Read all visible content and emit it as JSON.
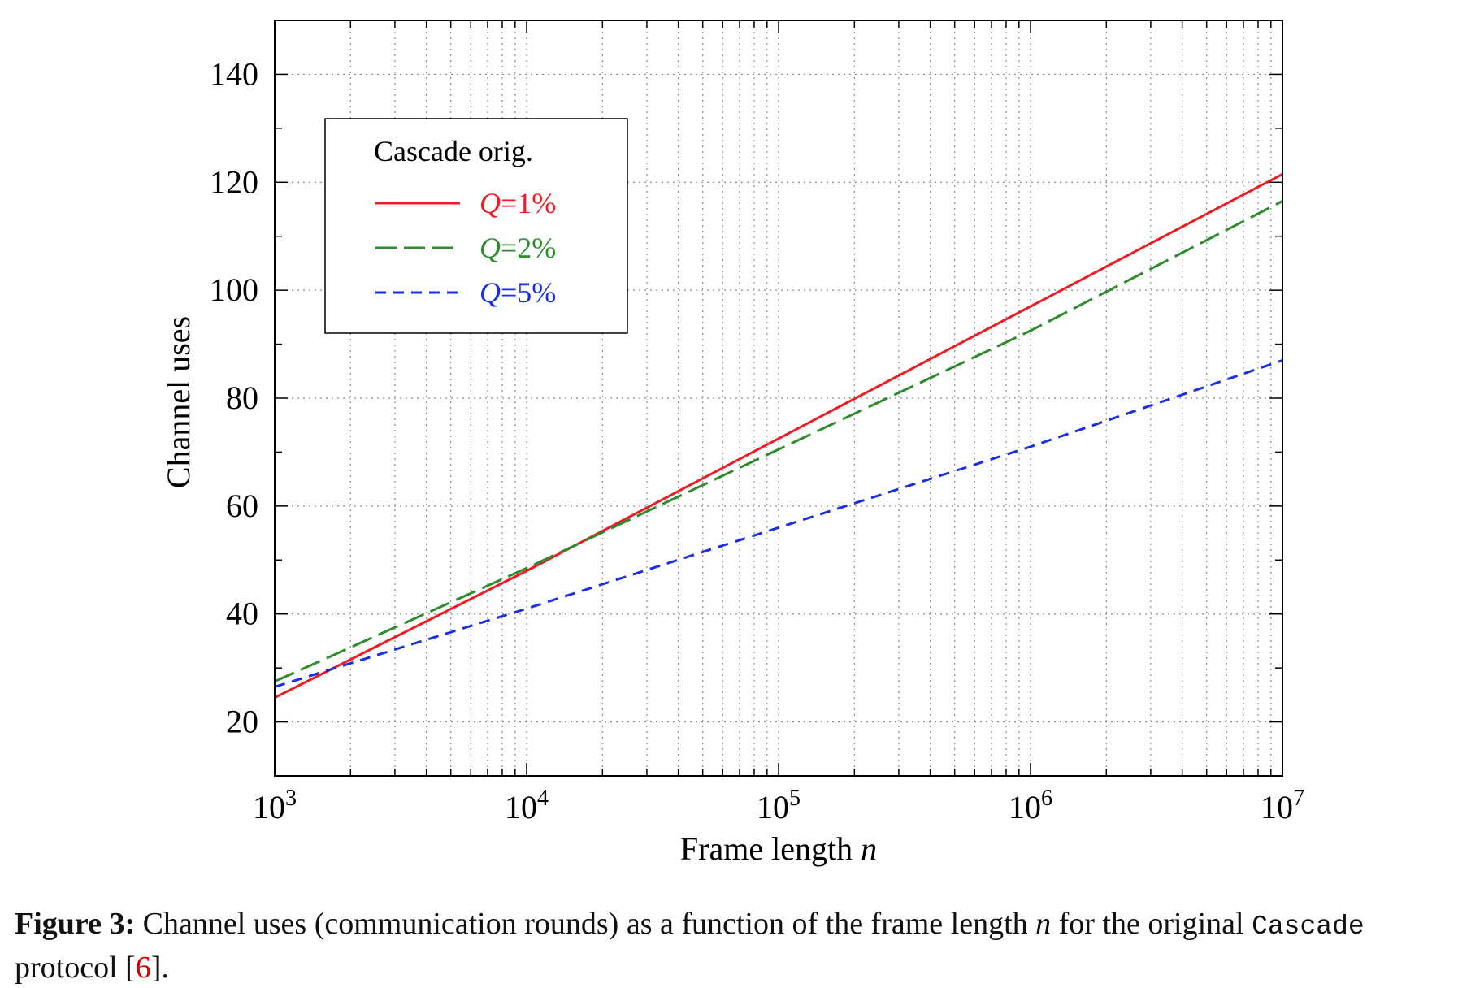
{
  "chart_data": {
    "type": "line",
    "xscale": "log",
    "xlim": [
      1000,
      10000000
    ],
    "ylim": [
      10,
      150
    ],
    "xlabel_text": "Frame length ",
    "xlabel_var": "n",
    "ylabel": "Channel uses",
    "xticks": [
      {
        "base": "10",
        "exp": "3"
      },
      {
        "base": "10",
        "exp": "4"
      },
      {
        "base": "10",
        "exp": "5"
      },
      {
        "base": "10",
        "exp": "6"
      },
      {
        "base": "10",
        "exp": "7"
      }
    ],
    "yticks": [
      "20",
      "40",
      "60",
      "80",
      "100",
      "120",
      "140"
    ],
    "grid": true,
    "legend_position": "top-left",
    "legend_title": "Cascade orig.",
    "series": [
      {
        "name": "Q=1%",
        "var": "Q",
        "suffix": "=1%",
        "color": "#ee1c25",
        "dash": "solid",
        "x": [
          1000,
          10000,
          100000,
          1000000,
          10000000
        ],
        "y": [
          24.5,
          48.0,
          72.5,
          97.0,
          121.5
        ]
      },
      {
        "name": "Q=2%",
        "var": "Q",
        "suffix": "=2%",
        "color": "#2e8b2e",
        "dash": "long",
        "x": [
          1000,
          10000,
          100000,
          1000000,
          10000000
        ],
        "y": [
          27.5,
          48.5,
          70.5,
          92.5,
          116.5
        ]
      },
      {
        "name": "Q=5%",
        "var": "Q",
        "suffix": "=5%",
        "color": "#1a2ee6",
        "dash": "short",
        "x": [
          1000,
          10000,
          100000,
          1000000,
          10000000
        ],
        "y": [
          26.5,
          41.0,
          56.0,
          71.0,
          87.0
        ]
      }
    ]
  },
  "caption": {
    "label": "Figure 3:",
    "text_before": " Channel uses (communication rounds) as a function of the frame length ",
    "var": "n",
    "text_middle": " for the original ",
    "code": "Cascade",
    "text_after_code": " protocol [",
    "ref": "6",
    "text_end": "]."
  }
}
